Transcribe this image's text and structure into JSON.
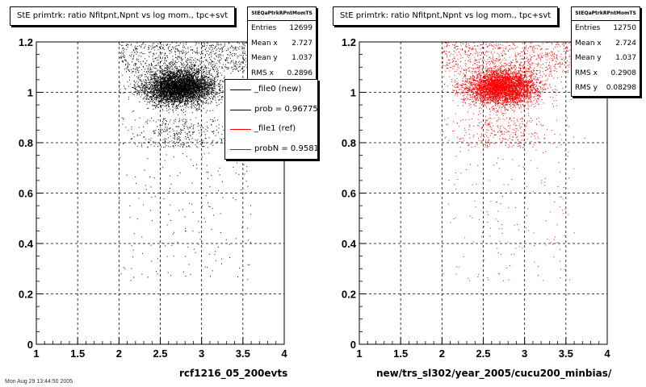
{
  "footer_text": "Mon Aug 29 13:44:50 2005",
  "legend": {
    "items": [
      {
        "label": "_file0 (new)",
        "color": "#000000"
      },
      {
        "label": "prob = 0.967754",
        "color": "#000000"
      },
      {
        "label": "_file1 (ref)",
        "color": "#ff0000"
      },
      {
        "label": "probN = 0.958164",
        "color": "#ff0000"
      }
    ]
  },
  "chart_data": [
    {
      "type": "scatter",
      "title": "StE primtrk: ratio Nfitpnt,Npnt vs log mom., tpc+svt",
      "xlabel": "rcf1216_05_200evts",
      "ylabel": "",
      "xlim": [
        1,
        4
      ],
      "ylim": [
        0,
        1.2
      ],
      "x_ticks": [
        "1",
        "1.5",
        "2",
        "2.5",
        "3",
        "3.5",
        "4"
      ],
      "y_ticks": [
        "0",
        "0.2",
        "0.4",
        "0.6",
        "0.8",
        "1",
        "1.2"
      ],
      "grid": true,
      "marker_color": "#000000",
      "stats": {
        "name": "StEQaPtrkRPntMomTS",
        "rows": [
          {
            "label": "Entries",
            "value": "12699"
          },
          {
            "label": "Mean x",
            "value": "2.727"
          },
          {
            "label": "Mean y",
            "value": "1.037"
          },
          {
            "label": "RMS x",
            "value": "0.2896"
          }
        ]
      },
      "distribution": {
        "entries": 12699,
        "mean_x": 2.727,
        "mean_y": 1.037,
        "rms_x": 0.2896,
        "x_range": [
          2.0,
          3.6
        ],
        "y_main": 1.02
      }
    },
    {
      "type": "scatter",
      "title": "StE primtrk: ratio Nfitpnt,Npnt vs log mom., tpc+svt",
      "xlabel": "new/trs_sl302/year_2005/cucu200_minbias/",
      "ylabel": "",
      "xlim": [
        1,
        4
      ],
      "ylim": [
        0,
        1.2
      ],
      "x_ticks": [
        "1",
        "1.5",
        "2",
        "2.5",
        "3",
        "3.5",
        "4"
      ],
      "y_ticks": [
        "0",
        "0.2",
        "0.4",
        "0.6",
        "0.8",
        "1",
        "1.2"
      ],
      "grid": true,
      "marker_color": "#ff0000",
      "stats": {
        "name": "StEQaPtrkRPntMomTS",
        "rows": [
          {
            "label": "Entries",
            "value": "12750"
          },
          {
            "label": "Mean x",
            "value": "2.724"
          },
          {
            "label": "Mean y",
            "value": "1.037"
          },
          {
            "label": "RMS x",
            "value": "0.2908"
          },
          {
            "label": "RMS y",
            "value": "0.08298"
          }
        ]
      },
      "distribution": {
        "entries": 12750,
        "mean_x": 2.724,
        "mean_y": 1.037,
        "rms_x": 0.2908,
        "rms_y": 0.08298,
        "x_range": [
          2.0,
          3.6
        ],
        "y_main": 1.02
      }
    }
  ]
}
